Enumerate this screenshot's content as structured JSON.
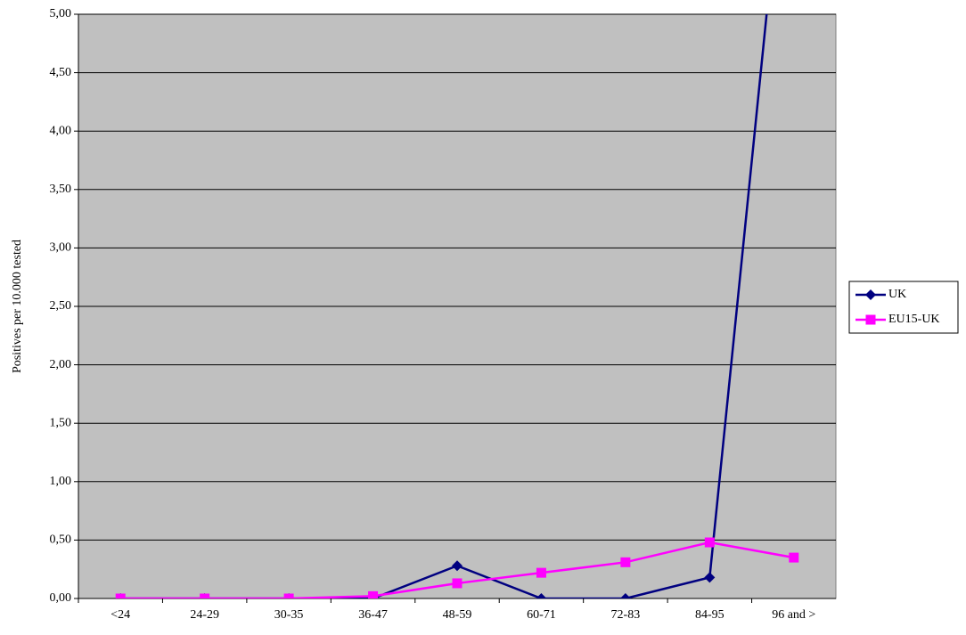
{
  "chart_data": {
    "type": "line",
    "y_label": "Positives per 10.000 tested",
    "categories": [
      "<24",
      "24-29",
      "30-35",
      "36-47",
      "48-59",
      "60-71",
      "72-83",
      "84-95",
      "96 and >"
    ],
    "series": [
      {
        "name": "UK",
        "color": "#000080",
        "marker": "diamond",
        "values": [
          0,
          0,
          0,
          0,
          0.28,
          0,
          0,
          0.18,
          7.3
        ]
      },
      {
        "name": "EU15-UK",
        "color": "#ff00ff",
        "marker": "square",
        "values": [
          0,
          0,
          0,
          0.02,
          0.13,
          0.22,
          0.31,
          0.48,
          0.35
        ]
      }
    ],
    "ylim": [
      0,
      5
    ],
    "yticks": [
      {
        "value": 0,
        "label": "0,00"
      },
      {
        "value": 0.5,
        "label": "0,50"
      },
      {
        "value": 1,
        "label": "1,00"
      },
      {
        "value": 1.5,
        "label": "1,50"
      },
      {
        "value": 2,
        "label": "2,00"
      },
      {
        "value": 2.5,
        "label": "2,50"
      },
      {
        "value": 3,
        "label": "3,00"
      },
      {
        "value": 3.5,
        "label": "3,50"
      },
      {
        "value": 4,
        "label": "4,00"
      },
      {
        "value": 4.5,
        "label": "4,50"
      },
      {
        "value": 5,
        "label": "5,00"
      }
    ],
    "grid": true,
    "legend": "right"
  }
}
